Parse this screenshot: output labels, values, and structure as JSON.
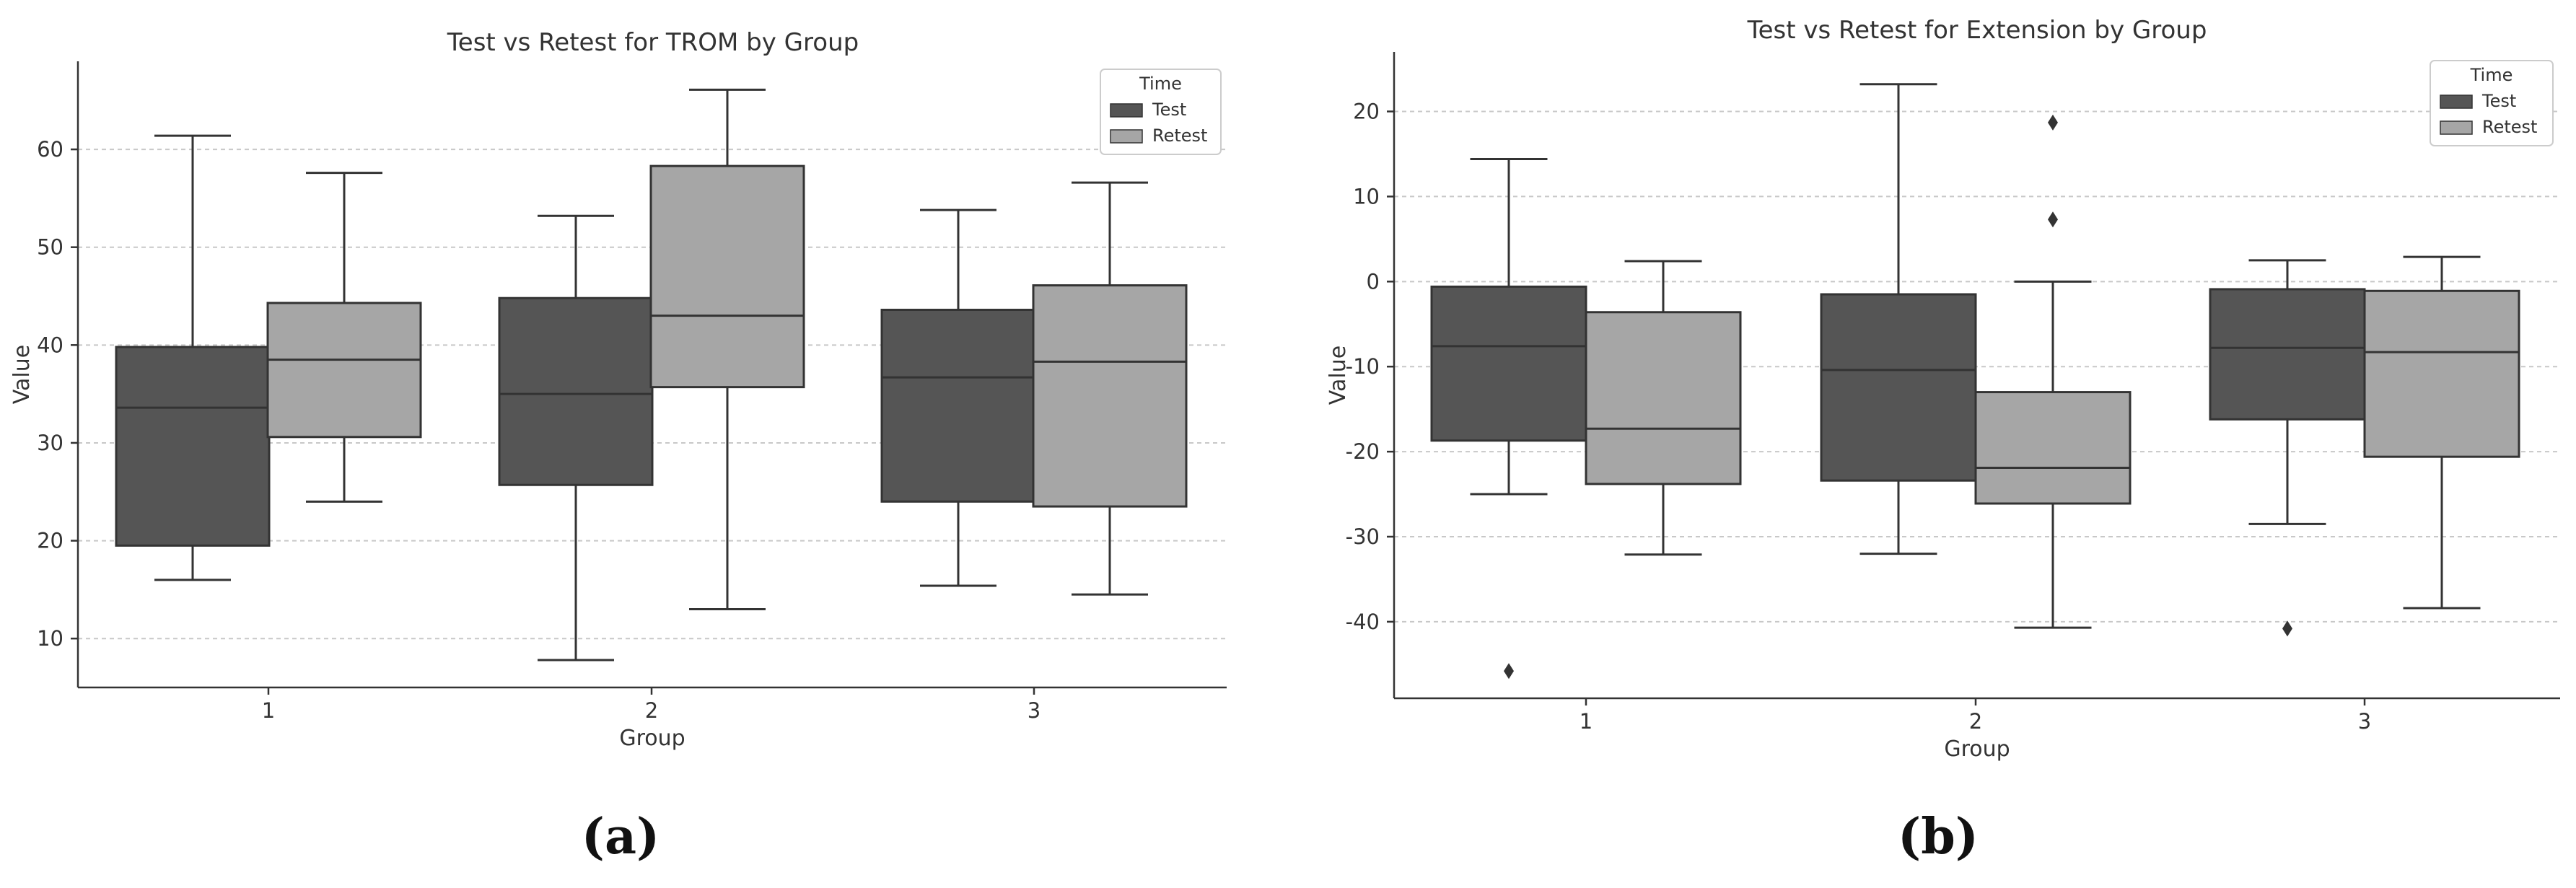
{
  "panel_labels": {
    "a": "(a)",
    "b": "(b)"
  },
  "colors": {
    "test": "#555555",
    "retest": "#a6a6a6",
    "line": "#333333",
    "grid": "#c8c8c8",
    "text": "#333333"
  },
  "chart_data": [
    {
      "type": "boxplot",
      "title": "Test vs Retest for TROM by Group",
      "xlabel": "Group",
      "ylabel": "Value",
      "categories": [
        "1",
        "2",
        "3"
      ],
      "ylim": [
        5,
        69
      ],
      "yticks": [
        10,
        20,
        30,
        40,
        50,
        60
      ],
      "grid": "horizontal dashed",
      "legend": {
        "title": "Time",
        "position": "top-right",
        "entries": [
          "Test",
          "Retest"
        ]
      },
      "series": [
        {
          "name": "Test",
          "boxes": [
            {
              "whislo": 16.0,
              "q1": 19.5,
              "med": 33.6,
              "q3": 39.8,
              "whishi": 61.4,
              "fliers": []
            },
            {
              "whislo": 7.8,
              "q1": 25.7,
              "med": 35.0,
              "q3": 44.8,
              "whishi": 53.2,
              "fliers": []
            },
            {
              "whislo": 15.4,
              "q1": 24.0,
              "med": 36.7,
              "q3": 43.6,
              "whishi": 53.8,
              "fliers": []
            }
          ]
        },
        {
          "name": "Retest",
          "boxes": [
            {
              "whislo": 24.0,
              "q1": 30.6,
              "med": 38.5,
              "q3": 44.3,
              "whishi": 57.6,
              "fliers": []
            },
            {
              "whislo": 13.0,
              "q1": 35.7,
              "med": 43.0,
              "q3": 58.3,
              "whishi": 66.1,
              "fliers": []
            },
            {
              "whislo": 14.5,
              "q1": 23.5,
              "med": 38.3,
              "q3": 46.1,
              "whishi": 56.6,
              "fliers": []
            }
          ]
        }
      ]
    },
    {
      "type": "boxplot",
      "title": "Test vs Retest for Extension by Group",
      "xlabel": "Group",
      "ylabel": "Value",
      "categories": [
        "1",
        "2",
        "3"
      ],
      "ylim": [
        -49,
        27
      ],
      "yticks": [
        -40,
        -30,
        -20,
        -10,
        0,
        10,
        20
      ],
      "grid": "horizontal dashed",
      "legend": {
        "title": "Time",
        "position": "top-right",
        "entries": [
          "Test",
          "Retest"
        ]
      },
      "series": [
        {
          "name": "Test",
          "boxes": [
            {
              "whislo": -25.0,
              "q1": -18.7,
              "med": -7.6,
              "q3": -0.6,
              "whishi": 14.4,
              "fliers": [
                -45.8
              ]
            },
            {
              "whislo": -32.0,
              "q1": -23.4,
              "med": -10.4,
              "q3": -1.5,
              "whishi": 23.2,
              "fliers": []
            },
            {
              "whislo": -28.5,
              "q1": -16.2,
              "med": -7.8,
              "q3": -0.9,
              "whishi": 2.5,
              "fliers": [
                -40.8
              ]
            }
          ]
        },
        {
          "name": "Retest",
          "boxes": [
            {
              "whislo": -32.1,
              "q1": -23.8,
              "med": -17.3,
              "q3": -3.6,
              "whishi": 2.4,
              "fliers": []
            },
            {
              "whislo": -40.7,
              "q1": -26.1,
              "med": -21.9,
              "q3": -13.0,
              "whishi": 0.0,
              "fliers": [
                7.3,
                18.7
              ]
            },
            {
              "whislo": -38.4,
              "q1": -20.6,
              "med": -8.3,
              "q3": -1.1,
              "whishi": 2.9,
              "fliers": []
            }
          ]
        }
      ]
    }
  ]
}
